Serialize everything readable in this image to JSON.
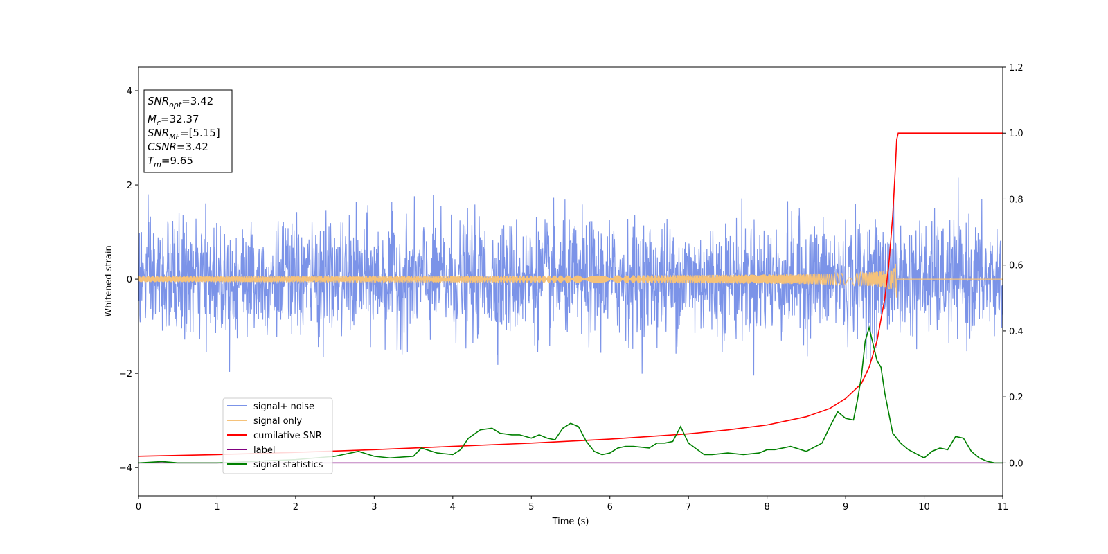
{
  "chart_data": {
    "type": "line",
    "title": "",
    "xlabel": "Time (s)",
    "ylabel": "Whitened strain",
    "xlim": [
      0,
      11
    ],
    "ylim": [
      -4.6,
      4.5
    ],
    "y2lim": [
      -0.1,
      1.2
    ],
    "x_ticks": [
      "0",
      "1",
      "2",
      "3",
      "4",
      "5",
      "6",
      "7",
      "8",
      "9",
      "10",
      "11"
    ],
    "y_ticks": [
      "−4",
      "−2",
      "0",
      "2",
      "4"
    ],
    "y2_ticks": [
      "0.0",
      "0.2",
      "0.4",
      "0.6",
      "0.8",
      "1.0",
      "1.2"
    ],
    "grid": false,
    "legend_position": "lower-left",
    "annotation": {
      "lines": [
        {
          "base": "SNR",
          "sub": "opt",
          "value": "=3.42"
        },
        {
          "base": "M",
          "sub": "c",
          "value": "=32.37"
        },
        {
          "base": "SNR",
          "sub": "MF",
          "value": "=[5.15]"
        },
        {
          "base": "CSNR",
          "sub": "",
          "value": "=3.42"
        },
        {
          "base": "T",
          "sub": "m",
          "value": "=9.65"
        }
      ]
    },
    "series": [
      {
        "name": "signal+ noise",
        "color": "#7b93e8",
        "axis": "left",
        "kind": "noise",
        "envelope": 1.1,
        "x_range": [
          0,
          11
        ]
      },
      {
        "name": "signal only",
        "color": "#f5c27a",
        "axis": "left",
        "kind": "chirp",
        "merger_time": 9.65,
        "peak_amplitude": 0.5,
        "x_range": [
          0,
          11
        ]
      },
      {
        "name": "cumilative SNR",
        "color": "#ff0000",
        "axis": "right",
        "x": [
          0,
          1,
          2,
          3,
          4,
          5,
          6,
          7,
          7.5,
          8,
          8.5,
          8.8,
          9.0,
          9.2,
          9.3,
          9.4,
          9.5,
          9.55,
          9.6,
          9.63,
          9.65,
          9.67,
          9.7,
          10,
          11
        ],
        "y": [
          0.02,
          0.025,
          0.032,
          0.04,
          0.05,
          0.06,
          0.072,
          0.088,
          0.1,
          0.115,
          0.14,
          0.165,
          0.195,
          0.24,
          0.29,
          0.37,
          0.5,
          0.6,
          0.75,
          0.88,
          0.98,
          1.0,
          1.0,
          1.0,
          1.0
        ]
      },
      {
        "name": "label",
        "color": "#800080",
        "axis": "right",
        "x": [
          0,
          11
        ],
        "y": [
          0,
          0
        ]
      },
      {
        "name": "signal statistics",
        "color": "#008000",
        "axis": "right",
        "x": [
          0,
          0.3,
          0.5,
          1.0,
          1.5,
          2.0,
          2.5,
          2.8,
          3.0,
          3.2,
          3.5,
          3.6,
          3.8,
          4.0,
          4.1,
          4.2,
          4.35,
          4.5,
          4.6,
          4.75,
          4.85,
          5.0,
          5.05,
          5.1,
          5.2,
          5.3,
          5.4,
          5.5,
          5.6,
          5.7,
          5.8,
          5.9,
          6.0,
          6.1,
          6.2,
          6.3,
          6.5,
          6.6,
          6.7,
          6.8,
          6.9,
          7.0,
          7.2,
          7.3,
          7.5,
          7.7,
          7.9,
          8.0,
          8.1,
          8.3,
          8.5,
          8.7,
          8.8,
          8.9,
          9.0,
          9.1,
          9.15,
          9.2,
          9.25,
          9.3,
          9.35,
          9.4,
          9.45,
          9.5,
          9.6,
          9.7,
          9.8,
          10.0,
          10.1,
          10.2,
          10.3,
          10.4,
          10.5,
          10.6,
          10.7,
          10.8,
          10.9,
          11.0
        ],
        "y": [
          0.0,
          0.004,
          0.0,
          0.0,
          0.005,
          0.01,
          0.02,
          0.035,
          0.02,
          0.015,
          0.02,
          0.045,
          0.03,
          0.025,
          0.04,
          0.075,
          0.1,
          0.105,
          0.09,
          0.085,
          0.085,
          0.075,
          0.08,
          0.085,
          0.075,
          0.07,
          0.105,
          0.12,
          0.11,
          0.065,
          0.035,
          0.025,
          0.03,
          0.045,
          0.05,
          0.05,
          0.045,
          0.06,
          0.06,
          0.065,
          0.11,
          0.06,
          0.025,
          0.025,
          0.03,
          0.025,
          0.03,
          0.04,
          0.04,
          0.05,
          0.035,
          0.06,
          0.11,
          0.155,
          0.135,
          0.13,
          0.19,
          0.26,
          0.37,
          0.41,
          0.36,
          0.31,
          0.29,
          0.21,
          0.09,
          0.06,
          0.04,
          0.015,
          0.035,
          0.045,
          0.04,
          0.08,
          0.075,
          0.035,
          0.015,
          0.005,
          0.0,
          0.0
        ]
      }
    ]
  }
}
